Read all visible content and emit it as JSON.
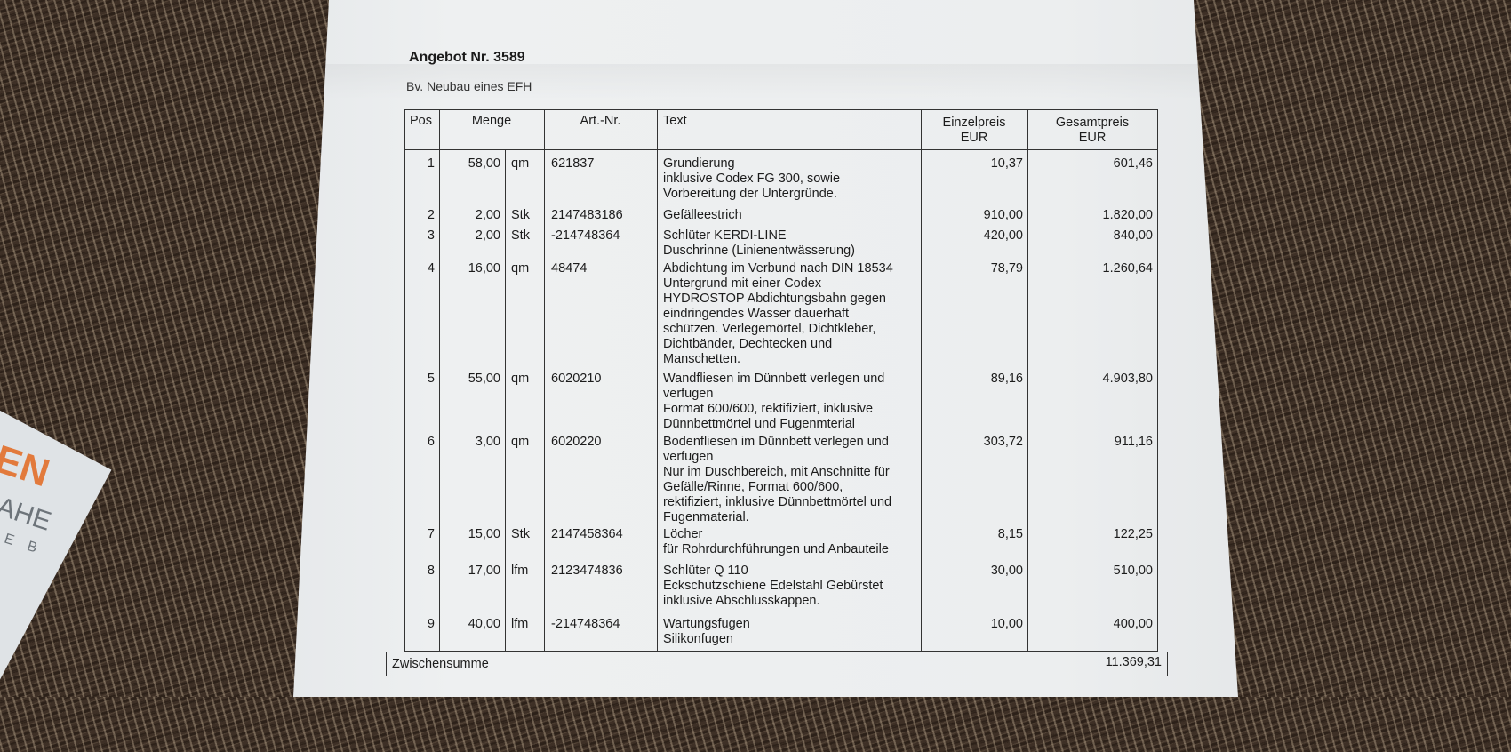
{
  "card": {
    "logo_lines": [
      "EN",
      "AHE",
      "E B"
    ],
    "accent": "#e27a3c"
  },
  "document": {
    "title": "Angebot Nr. 3589",
    "subtitle": "Bv. Neubau eines EFH",
    "headers": {
      "pos": "Pos",
      "menge": "Menge",
      "art_nr": "Art.-Nr.",
      "text": "Text",
      "einzelpreis": "Einzelpreis",
      "einzelpreis_unit": "EUR",
      "gesamtpreis": "Gesamtpreis",
      "gesamtpreis_unit": "EUR"
    },
    "rows": [
      {
        "pos": "1",
        "qty": "58,00",
        "unit": "qm",
        "art": "621837",
        "text": [
          "Grundierung",
          "inklusive Codex FG 300, sowie",
          "Vorbereitung der Untergründe."
        ],
        "einzel": "10,37",
        "gesamt": "601,46"
      },
      {
        "pos": "2",
        "qty": "2,00",
        "unit": "Stk",
        "art": "2147483186",
        "text": [
          "Gefälleestrich"
        ],
        "einzel": "910,00",
        "gesamt": "1.820,00"
      },
      {
        "pos": "3",
        "qty": "2,00",
        "unit": "Stk",
        "art": "-214748364",
        "text": [
          "Schlüter KERDI-LINE",
          "Duschrinne (Linienentwässerung)"
        ],
        "einzel": "420,00",
        "gesamt": "840,00"
      },
      {
        "pos": "4",
        "qty": "16,00",
        "unit": "qm",
        "art": "48474",
        "text": [
          "Abdichtung im Verbund nach DIN 18534",
          "Untergrund mit einer Codex",
          "HYDROSTOP Abdichtungsbahn gegen",
          "eindringendes Wasser dauerhaft",
          "schützen. Verlegemörtel, Dichtkleber,",
          "Dichtbänder, Dechtecken und",
          "Manschetten."
        ],
        "einzel": "78,79",
        "gesamt": "1.260,64"
      },
      {
        "pos": "5",
        "qty": "55,00",
        "unit": "qm",
        "art": "6020210",
        "text": [
          "Wandfliesen im Dünnbett verlegen und",
          "verfugen",
          "Format 600/600, rektifiziert, inklusive",
          "Dünnbettmörtel und Fugenmterial"
        ],
        "einzel": "89,16",
        "gesamt": "4.903,80"
      },
      {
        "pos": "6",
        "qty": "3,00",
        "unit": "qm",
        "art": "6020220",
        "text": [
          "Bodenfliesen im Dünnbett verlegen und",
          "verfugen",
          "Nur im Duschbereich, mit Anschnitte für",
          "Gefälle/Rinne, Format 600/600,",
          "rektifiziert, inklusive Dünnbettmörtel und",
          "Fugenmaterial."
        ],
        "einzel": "303,72",
        "gesamt": "911,16"
      },
      {
        "pos": "7",
        "qty": "15,00",
        "unit": "Stk",
        "art": "2147458364",
        "text": [
          "Löcher",
          "für Rohrdurchführungen und Anbauteile"
        ],
        "einzel": "8,15",
        "gesamt": "122,25"
      },
      {
        "pos": "8",
        "qty": "17,00",
        "unit": "lfm",
        "art": "2123474836",
        "text": [
          "Schlüter Q 110",
          "Eckschutzschiene Edelstahl Gebürstet",
          "inklusive Abschlusskappen."
        ],
        "einzel": "30,00",
        "gesamt": "510,00"
      },
      {
        "pos": "9",
        "qty": "40,00",
        "unit": "lfm",
        "art": "-214748364",
        "text": [
          "Wartungsfugen",
          "Silikonfugen"
        ],
        "einzel": "10,00",
        "gesamt": "400,00"
      }
    ],
    "subtotal_label": "Zwischensumme",
    "subtotal_value": "11.369,31"
  }
}
